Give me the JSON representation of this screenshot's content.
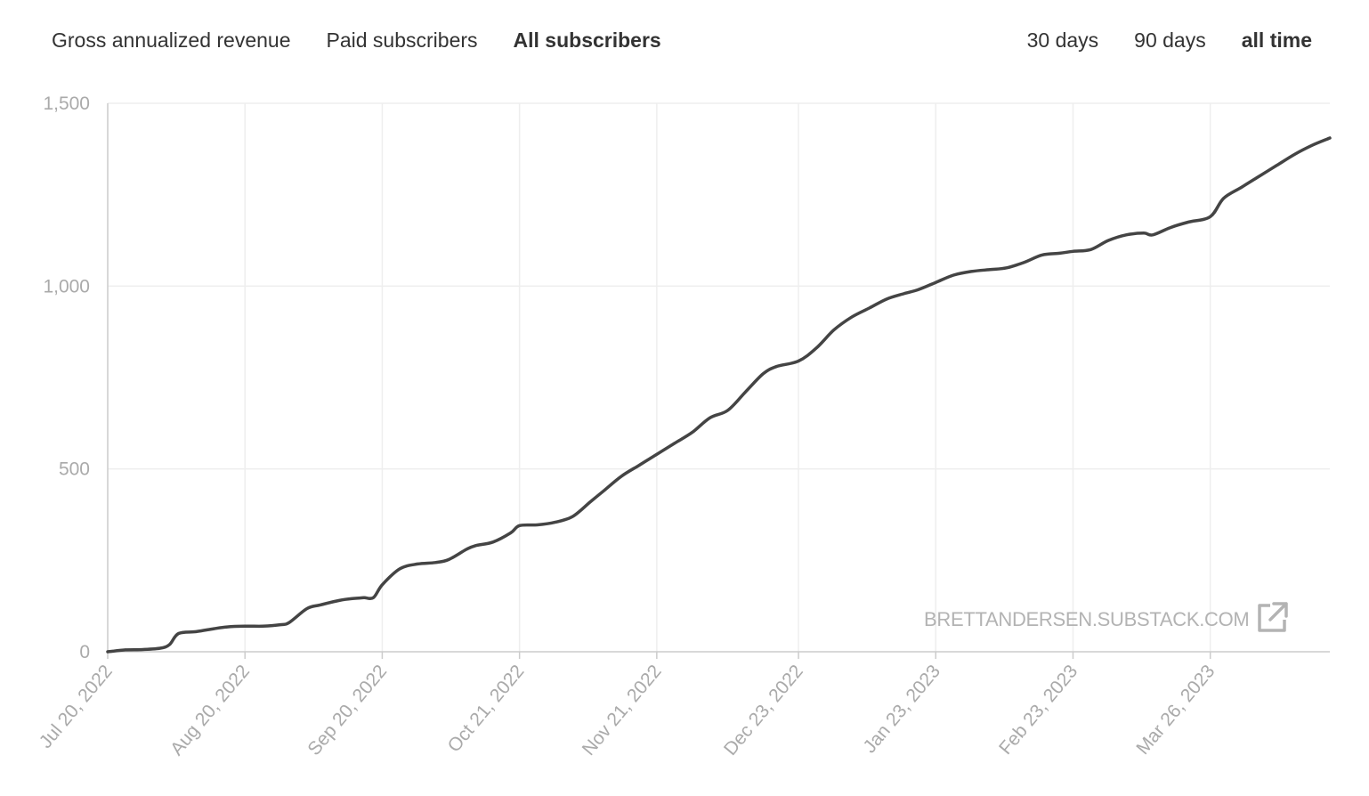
{
  "metric_tabs": [
    {
      "label": "Gross annualized revenue",
      "active": false
    },
    {
      "label": "Paid subscribers",
      "active": false
    },
    {
      "label": "All subscribers",
      "active": true
    }
  ],
  "range_tabs": [
    {
      "label": "30 days",
      "active": false
    },
    {
      "label": "90 days",
      "active": false
    },
    {
      "label": "all time",
      "active": true
    }
  ],
  "watermark": {
    "text": "BRETTANDERSEN.SUBSTACK.COM",
    "icon": "external-link-icon"
  },
  "colors": {
    "line": "#444444",
    "grid": "#eeeeee",
    "axis": "#cccccc",
    "tick_text": "#aaaaaa",
    "watermark": "#b3b3b3"
  },
  "chart_data": {
    "type": "line",
    "title": "",
    "xlabel": "",
    "ylabel": "",
    "ylim": [
      0,
      1500
    ],
    "xlim": [
      "2022-07-20",
      "2023-04-22"
    ],
    "y_ticks": [
      0,
      500,
      1000,
      1500
    ],
    "y_tick_labels": [
      "0",
      "500",
      "1,000",
      "1,500"
    ],
    "x_ticks": [
      "2022-07-20",
      "2022-08-20",
      "2022-09-20",
      "2022-10-21",
      "2022-11-21",
      "2022-12-23",
      "2023-01-23",
      "2023-02-23",
      "2023-03-26"
    ],
    "x_tick_labels": [
      "Jul 20, 2022",
      "Aug 20, 2022",
      "Sep 20, 2022",
      "Oct 21, 2022",
      "Nov 21, 2022",
      "Dec 23, 2022",
      "Jan 23, 2023",
      "Feb 23, 2023",
      "Mar 26, 2023"
    ],
    "grid": true,
    "series": [
      {
        "x": [
          "2022-07-20",
          "2022-07-24",
          "2022-07-28",
          "2022-08-01",
          "2022-08-03",
          "2022-08-05",
          "2022-08-09",
          "2022-08-13",
          "2022-08-16",
          "2022-08-20",
          "2022-08-24",
          "2022-08-28",
          "2022-08-30",
          "2022-09-03",
          "2022-09-06",
          "2022-09-11",
          "2022-09-15",
          "2022-09-16",
          "2022-09-18",
          "2022-09-20",
          "2022-09-24",
          "2022-09-28",
          "2022-10-02",
          "2022-10-05",
          "2022-10-09",
          "2022-10-11",
          "2022-10-15",
          "2022-10-19",
          "2022-10-21",
          "2022-10-25",
          "2022-10-29",
          "2022-11-02",
          "2022-11-06",
          "2022-11-09",
          "2022-11-13",
          "2022-11-17",
          "2022-11-21",
          "2022-11-25",
          "2022-11-29",
          "2022-12-03",
          "2022-12-07",
          "2022-12-11",
          "2022-12-15",
          "2022-12-18",
          "2022-12-23",
          "2022-12-27",
          "2022-12-31",
          "2023-01-04",
          "2023-01-08",
          "2023-01-12",
          "2023-01-16",
          "2023-01-19",
          "2023-01-23",
          "2023-01-27",
          "2023-01-31",
          "2023-02-04",
          "2023-02-08",
          "2023-02-12",
          "2023-02-16",
          "2023-02-20",
          "2023-02-23",
          "2023-02-27",
          "2023-03-03",
          "2023-03-07",
          "2023-03-11",
          "2023-03-13",
          "2023-03-17",
          "2023-03-21",
          "2023-03-26",
          "2023-03-29",
          "2023-04-02",
          "2023-04-06",
          "2023-04-10",
          "2023-04-14",
          "2023-04-18",
          "2023-04-22"
        ],
        "y": [
          0,
          5,
          6,
          10,
          20,
          50,
          55,
          63,
          68,
          70,
          70,
          74,
          80,
          118,
          128,
          142,
          147,
          148,
          148,
          183,
          227,
          240,
          244,
          252,
          280,
          290,
          300,
          325,
          345,
          347,
          354,
          370,
          410,
          440,
          480,
          510,
          540,
          570,
          600,
          640,
          660,
          710,
          760,
          780,
          795,
          830,
          880,
          915,
          940,
          965,
          980,
          990,
          1010,
          1030,
          1040,
          1045,
          1050,
          1065,
          1085,
          1090,
          1095,
          1100,
          1125,
          1140,
          1145,
          1140,
          1160,
          1175,
          1190,
          1240,
          1270,
          1300,
          1330,
          1360,
          1385,
          1405
        ]
      }
    ]
  }
}
